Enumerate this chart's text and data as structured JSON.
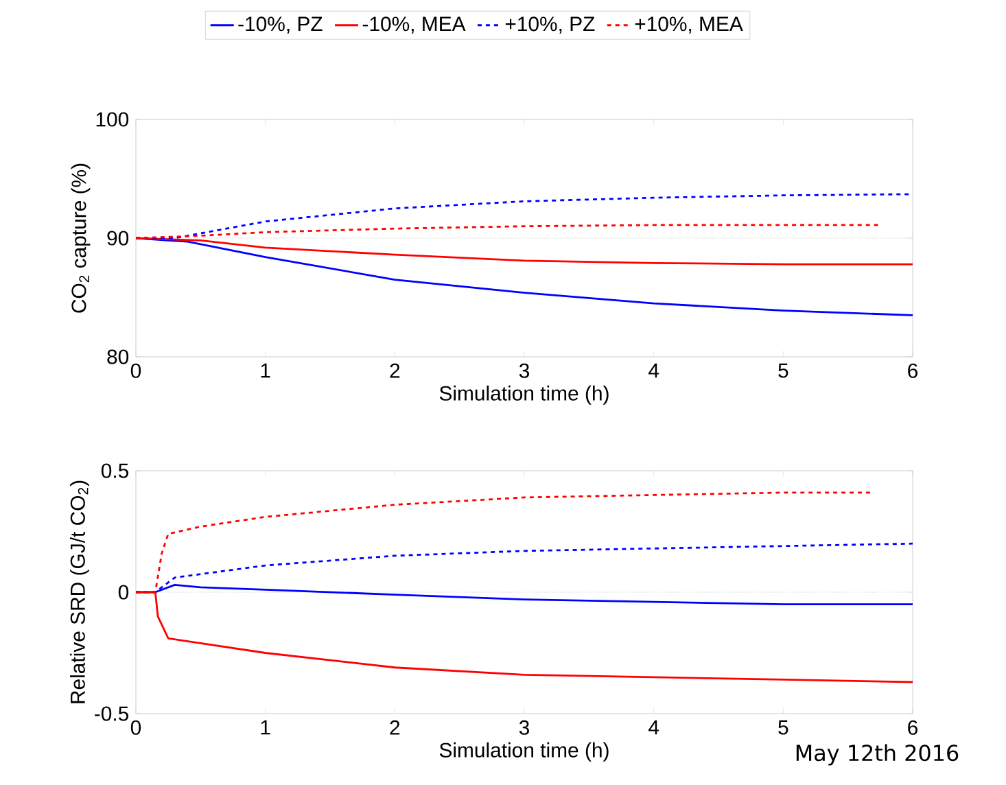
{
  "chart_data": [
    {
      "type": "line",
      "ylabel": "CO$_{2}$ capture (%)",
      "xlabel": "Simulation time (h)",
      "xlim": [
        0,
        6
      ],
      "ylim": [
        80,
        100
      ],
      "xticks": [
        0,
        1,
        2,
        3,
        4,
        5,
        6
      ],
      "yticks": [
        80,
        90,
        100
      ],
      "grid": false,
      "legend": "top",
      "marker": "none",
      "ref_lines": [
        {
          "axis": "y",
          "value": 90,
          "color": "#c8c8c8",
          "line_style": "dotted"
        }
      ],
      "series": [
        {
          "name": "-10%, PZ",
          "color": "#0000ff",
          "line_style": "solid",
          "x": [
            0,
            0.4,
            1,
            2,
            3,
            4,
            5,
            6
          ],
          "values": [
            90,
            89.7,
            88.4,
            86.5,
            85.4,
            84.5,
            83.9,
            83.5
          ]
        },
        {
          "name": "-10%, MEA",
          "color": "#ff0000",
          "line_style": "solid",
          "x": [
            0,
            0.5,
            1,
            2,
            3,
            4,
            5,
            6
          ],
          "values": [
            90,
            89.8,
            89.2,
            88.6,
            88.1,
            87.9,
            87.8,
            87.8
          ]
        },
        {
          "name": "+10%, PZ",
          "color": "#0000ff",
          "line_style": "dashed",
          "x": [
            0,
            0.3,
            1,
            2,
            3,
            4,
            5,
            6
          ],
          "values": [
            90,
            90,
            91.4,
            92.5,
            93.1,
            93.4,
            93.6,
            93.7
          ]
        },
        {
          "name": "+10%, MEA",
          "color": "#ff0000",
          "line_style": "dashed",
          "x": [
            0,
            0.5,
            1,
            2,
            3,
            4,
            5.75
          ],
          "values": [
            90,
            90.2,
            90.5,
            90.8,
            91.0,
            91.1,
            91.1
          ]
        }
      ]
    },
    {
      "type": "line",
      "ylabel": "Relative SRD (GJ/t CO$_{2}$)",
      "xlabel": "Simulation time (h)",
      "xlim": [
        0,
        6
      ],
      "ylim": [
        -0.5,
        0.5
      ],
      "xticks": [
        0,
        1,
        2,
        3,
        4,
        5,
        6
      ],
      "yticks": [
        -0.5,
        0,
        0.5
      ],
      "grid": false,
      "marker": "none",
      "ref_lines": [
        {
          "axis": "y",
          "value": 0,
          "color": "#c8c8c8",
          "line_style": "dotted"
        }
      ],
      "annotations": [
        "May 12th 2016"
      ],
      "series": [
        {
          "color": "#0000ff",
          "line_style": "solid",
          "x": [
            0,
            0.15,
            0.3,
            0.5,
            1,
            2,
            3,
            4,
            5,
            6
          ],
          "values": [
            0,
            0,
            0.03,
            0.02,
            0.01,
            -0.01,
            -0.03,
            -0.04,
            -0.05,
            -0.05
          ]
        },
        {
          "color": "#ff0000",
          "line_style": "solid",
          "x": [
            0,
            0.15,
            0.17,
            0.25,
            0.5,
            1,
            2,
            3,
            4,
            5,
            6
          ],
          "values": [
            0,
            0,
            -0.1,
            -0.19,
            -0.21,
            -0.25,
            -0.31,
            -0.34,
            -0.35,
            -0.36,
            -0.37
          ]
        },
        {
          "color": "#0000ff",
          "line_style": "dashed",
          "x": [
            0,
            0.15,
            0.3,
            1,
            2,
            3,
            4,
            5,
            6
          ],
          "values": [
            0,
            0,
            0.06,
            0.11,
            0.15,
            0.17,
            0.18,
            0.19,
            0.2
          ]
        },
        {
          "color": "#ff0000",
          "line_style": "dashed",
          "x": [
            0,
            0.15,
            0.2,
            0.25,
            0.5,
            1,
            2,
            3,
            4,
            5,
            5.7
          ],
          "values": [
            0,
            0,
            0.16,
            0.24,
            0.27,
            0.31,
            0.36,
            0.39,
            0.4,
            0.41,
            0.41
          ]
        }
      ]
    }
  ]
}
